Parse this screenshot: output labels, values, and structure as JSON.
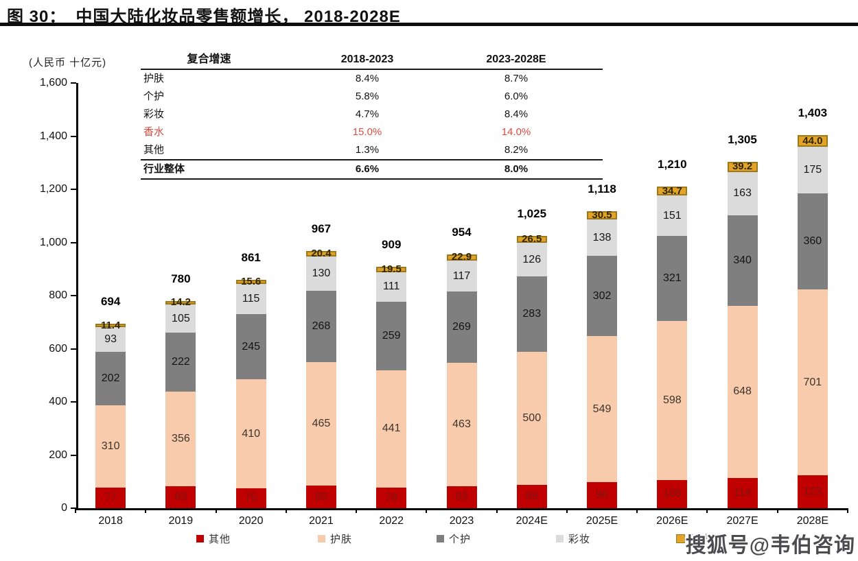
{
  "title": {
    "prefix": "图 30：",
    "text": "中国大陆化妆品零售额增长， 2018-2028E"
  },
  "axis": {
    "unit_label": "(人民币 十亿元)",
    "y_ticks": [
      {
        "label": "0",
        "value": 0
      },
      {
        "label": "200",
        "value": 200
      },
      {
        "label": "400",
        "value": 400
      },
      {
        "label": "600",
        "value": 600
      },
      {
        "label": "800",
        "value": 800
      },
      {
        "label": "1,000",
        "value": 1000
      },
      {
        "label": "1,200",
        "value": 1200
      },
      {
        "label": "1,400",
        "value": 1400
      },
      {
        "label": "1,600",
        "value": 1600
      }
    ]
  },
  "table": {
    "header": [
      "复合增速",
      "2018-2023",
      "2023-2028E"
    ],
    "rows": [
      {
        "label": "护肤",
        "v1": "8.4%",
        "v2": "8.7%"
      },
      {
        "label": "个护",
        "v1": "5.8%",
        "v2": "6.0%"
      },
      {
        "label": "彩妆",
        "v1": "4.7%",
        "v2": "8.4%"
      },
      {
        "label": "香水",
        "v1": "15.0%",
        "v2": "14.0%",
        "highlight": true
      },
      {
        "label": "其他",
        "v1": "1.3%",
        "v2": "8.2%"
      }
    ],
    "total_row": {
      "label": "行业整体",
      "v1": "6.6%",
      "v2": "8.0%"
    }
  },
  "chart_data": {
    "type": "bar",
    "stacked": true,
    "title": "中国大陆化妆品零售额增长, 2018-2028E",
    "ylabel": "人民币 十亿元",
    "ylim": [
      0,
      1600
    ],
    "grid": false,
    "legend_position": "bottom",
    "categories": [
      "2018",
      "2019",
      "2020",
      "2021",
      "2022",
      "2023",
      "2024E",
      "2025E",
      "2026E",
      "2027E",
      "2028E"
    ],
    "series": [
      {
        "name": "其他",
        "color": "#C00000",
        "values": [
          77,
          83,
          75,
          85,
          78,
          83,
          89,
          98,
          106,
          114,
          123
        ]
      },
      {
        "name": "护肤",
        "color": "#F8CBAD",
        "values": [
          310,
          356,
          410,
          465,
          441,
          463,
          500,
          549,
          598,
          648,
          701
        ]
      },
      {
        "name": "个护",
        "color": "#7F7F7F",
        "values": [
          202,
          222,
          245,
          268,
          259,
          269,
          283,
          302,
          321,
          340,
          360
        ]
      },
      {
        "name": "彩妆",
        "color": "#DBDBDB",
        "values": [
          93,
          105,
          115,
          130,
          111,
          117,
          126,
          138,
          151,
          163,
          175
        ]
      },
      {
        "name": "香水",
        "color": "#E2A32B",
        "values": [
          11.4,
          14.2,
          15.6,
          20.4,
          19.5,
          22.9,
          26.5,
          30.5,
          34.7,
          39.2,
          44.0
        ],
        "labels": [
          "11.4",
          "14.2",
          "15.6",
          "20.4",
          "19.5",
          "22.9",
          "26.5",
          "30.5",
          "34.7",
          "39.2",
          "44.0"
        ]
      }
    ],
    "totals": [
      "694",
      "780",
      "861",
      "967",
      "909",
      "954",
      "1,025",
      "1,118",
      "1,210",
      "1,305",
      "1,403"
    ]
  },
  "watermark": {
    "text": "搜狐号@韦伯咨询"
  }
}
